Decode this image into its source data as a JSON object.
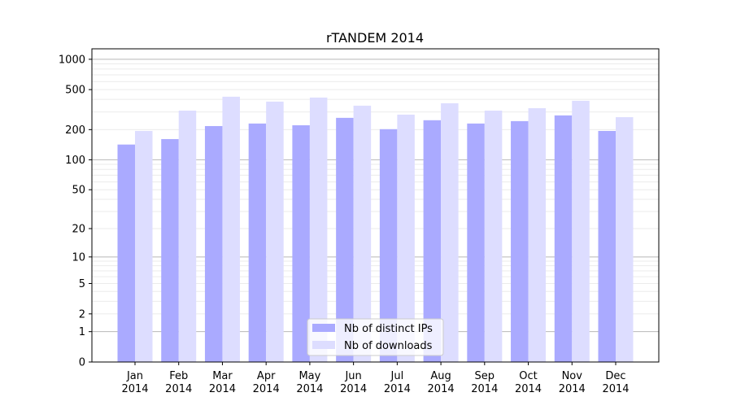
{
  "chart_data": {
    "type": "bar",
    "title": "rTANDEM 2014",
    "xlabel": "",
    "ylabel": "",
    "yscale": "log(y+1)",
    "ylim": [
      0,
      1270
    ],
    "yticks": [
      0,
      1,
      2,
      5,
      10,
      20,
      50,
      100,
      200,
      500,
      1000
    ],
    "grid": true,
    "legend_position": "bottom-center",
    "categories": [
      "Jan\n2014",
      "Feb\n2014",
      "Mar\n2014",
      "Apr\n2014",
      "May\n2014",
      "Jun\n2014",
      "Jul\n2014",
      "Aug\n2014",
      "Sep\n2014",
      "Oct\n2014",
      "Nov\n2014",
      "Dec\n2014"
    ],
    "series": [
      {
        "name": "Nb of distinct IPs",
        "color": "#aaaaff",
        "values": [
          142,
          161,
          217,
          230,
          221,
          262,
          202,
          248,
          230,
          243,
          277,
          194
        ]
      },
      {
        "name": "Nb of downloads",
        "color": "#ddddff",
        "values": [
          194,
          309,
          425,
          380,
          417,
          346,
          282,
          366,
          309,
          327,
          387,
          266
        ]
      }
    ]
  }
}
